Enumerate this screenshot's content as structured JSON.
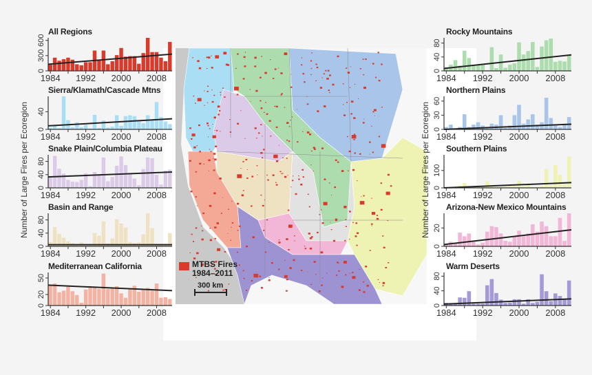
{
  "y_axis_label": "Number of Large Fires per Ecoregion",
  "legend": {
    "fires_label": "MTBS Fires",
    "years_label": "1984–2011",
    "scale_label": "300 km",
    "fire_color": "#d93a2b"
  },
  "chart_data": [
    {
      "type": "bar",
      "title": "All Regions",
      "side": "left",
      "color": "#d93a2b",
      "x_start": 1984,
      "x_end": 2011,
      "xticks": [
        1984,
        1992,
        2000,
        2008
      ],
      "yticks": [
        0,
        300,
        600
      ],
      "ylim": [
        0,
        650
      ],
      "values": [
        120,
        260,
        200,
        230,
        260,
        220,
        130,
        110,
        170,
        170,
        400,
        210,
        400,
        130,
        190,
        310,
        450,
        280,
        290,
        290,
        140,
        350,
        650,
        370,
        370,
        260,
        190,
        570
      ],
      "trend": [
        130,
        330
      ]
    },
    {
      "type": "bar",
      "title": "Sierra/Klamath/Cascade Mtns",
      "side": "left",
      "color": "#a9def5",
      "x_start": 1984,
      "x_end": 2011,
      "xticks": [
        1984,
        1992,
        2000,
        2008
      ],
      "yticks": [
        0,
        40
      ],
      "ylim": [
        0,
        75
      ],
      "values": [
        4,
        8,
        3,
        75,
        21,
        5,
        16,
        5,
        10,
        2,
        33,
        3,
        20,
        4,
        6,
        32,
        8,
        30,
        32,
        30,
        18,
        14,
        32,
        22,
        62,
        28,
        18,
        12
      ],
      "trend": [
        8,
        24
      ]
    },
    {
      "type": "bar",
      "title": "Snake Plain/Columbia Plateau",
      "side": "left",
      "color": "#dccbe8",
      "x_start": 1984,
      "x_end": 2011,
      "xticks": [
        1984,
        1992,
        2000,
        2008
      ],
      "yticks": [
        0,
        40,
        80
      ],
      "ylim": [
        0,
        100
      ],
      "values": [
        35,
        97,
        58,
        43,
        24,
        19,
        18,
        24,
        44,
        5,
        48,
        40,
        92,
        20,
        33,
        67,
        95,
        69,
        42,
        28,
        8,
        57,
        92,
        90,
        40,
        10,
        52,
        55
      ],
      "trend": [
        33,
        48
      ]
    },
    {
      "type": "bar",
      "title": "Basin and Range",
      "side": "left",
      "color": "#efe2c2",
      "x_start": 1984,
      "x_end": 2011,
      "xticks": [
        1984,
        1992,
        2000,
        2008
      ],
      "yticks": [
        0,
        40,
        80
      ],
      "ylim": [
        0,
        100
      ],
      "values": [
        13,
        58,
        38,
        26,
        15,
        10,
        3,
        12,
        3,
        3,
        40,
        32,
        76,
        9,
        24,
        82,
        69,
        57,
        13,
        10,
        12,
        36,
        100,
        55,
        8,
        8,
        8,
        40
      ],
      "trend": [
        5,
        5
      ]
    },
    {
      "type": "bar",
      "title": "Mediterranean California",
      "side": "left",
      "color": "#f4b3a2",
      "x_start": 1984,
      "x_end": 2011,
      "xticks": [
        1984,
        1992,
        2000,
        2008
      ],
      "yticks": [
        0,
        20,
        50
      ],
      "ylim": [
        0,
        60
      ],
      "values": [
        38,
        40,
        24,
        27,
        34,
        26,
        19,
        5,
        29,
        33,
        33,
        30,
        58,
        30,
        32,
        35,
        22,
        14,
        30,
        36,
        25,
        28,
        32,
        27,
        40,
        14,
        15,
        12
      ],
      "trend": [
        37,
        27
      ]
    },
    {
      "type": "bar",
      "title": "Rocky Mountains",
      "side": "right",
      "color": "#addcae",
      "x_start": 1984,
      "x_end": 2011,
      "xticks": [
        1984,
        1992,
        2000,
        2008
      ],
      "yticks": [
        0,
        40,
        80
      ],
      "ylim": [
        0,
        95
      ],
      "values": [
        10,
        18,
        31,
        15,
        58,
        37,
        15,
        17,
        20,
        2,
        68,
        8,
        47,
        9,
        18,
        22,
        82,
        47,
        57,
        83,
        11,
        70,
        88,
        93,
        26,
        29,
        27,
        45
      ],
      "trend": [
        7,
        46
      ]
    },
    {
      "type": "bar",
      "title": "Northern Plains",
      "side": "right",
      "color": "#a9c5ea",
      "x_start": 1984,
      "x_end": 2011,
      "xticks": [
        1984,
        1992,
        2000,
        2008
      ],
      "yticks": [
        0,
        30,
        60
      ],
      "ylim": [
        0,
        70
      ],
      "values": [
        5,
        10,
        1,
        5,
        32,
        5,
        10,
        15,
        8,
        2,
        12,
        10,
        30,
        3,
        8,
        30,
        52,
        12,
        21,
        32,
        10,
        15,
        67,
        24,
        8,
        5,
        12,
        26
      ],
      "trend": [
        0,
        11
      ]
    },
    {
      "type": "bar",
      "title": "Southern Plains",
      "side": "right",
      "color": "#eef2b2",
      "x_start": 1984,
      "x_end": 2011,
      "xticks": [
        1984,
        1992,
        2000,
        2008
      ],
      "yticks": [
        0,
        100
      ],
      "ylim": [
        0,
        190
      ],
      "values": [
        5,
        3,
        3,
        15,
        28,
        5,
        5,
        3,
        5,
        38,
        15,
        5,
        5,
        10,
        12,
        15,
        40,
        10,
        25,
        5,
        5,
        10,
        108,
        15,
        130,
        75,
        20,
        180
      ],
      "trend": [
        0,
        30
      ]
    },
    {
      "type": "bar",
      "title": "Arizona-New Mexico Mountains",
      "side": "right",
      "color": "#f2b6d6",
      "x_start": 1984,
      "x_end": 2011,
      "xticks": [
        1984,
        1992,
        2000,
        2008
      ],
      "yticks": [
        0,
        20
      ],
      "ylim": [
        0,
        36
      ],
      "values": [
        2,
        5,
        3,
        15,
        11,
        14,
        5,
        2,
        4,
        16,
        22,
        21,
        14,
        6,
        5,
        11,
        17,
        11,
        14,
        24,
        16,
        27,
        22,
        11,
        11,
        31,
        6,
        36
      ],
      "trend": [
        2,
        18
      ]
    },
    {
      "type": "bar",
      "title": "Warm Deserts",
      "side": "right",
      "color": "#a59ad6",
      "x_start": 1984,
      "x_end": 2011,
      "xticks": [
        1984,
        1992,
        2000,
        2008
      ],
      "yticks": [
        0,
        40,
        80
      ],
      "ylim": [
        0,
        90
      ],
      "values": [
        7,
        5,
        5,
        22,
        21,
        39,
        5,
        5,
        5,
        55,
        72,
        34,
        16,
        7,
        8,
        17,
        17,
        5,
        17,
        7,
        10,
        85,
        39,
        12,
        33,
        26,
        17,
        68
      ],
      "trend": [
        4,
        18
      ]
    }
  ],
  "map_colors": {
    "ocean": "#c9c9c9",
    "land": "#f7f7f7",
    "sierra": "#a9def5",
    "rocky": "#addcae",
    "northern_plains": "#a9c5ea",
    "snake": "#dccbe8",
    "basin": "#efe2c2",
    "medcal": "#f4a996",
    "plateau": "#e2e2e2",
    "southern_plains": "#eef2b2",
    "aznm": "#f2b6d6",
    "warm_deserts": "#9d93d3"
  }
}
